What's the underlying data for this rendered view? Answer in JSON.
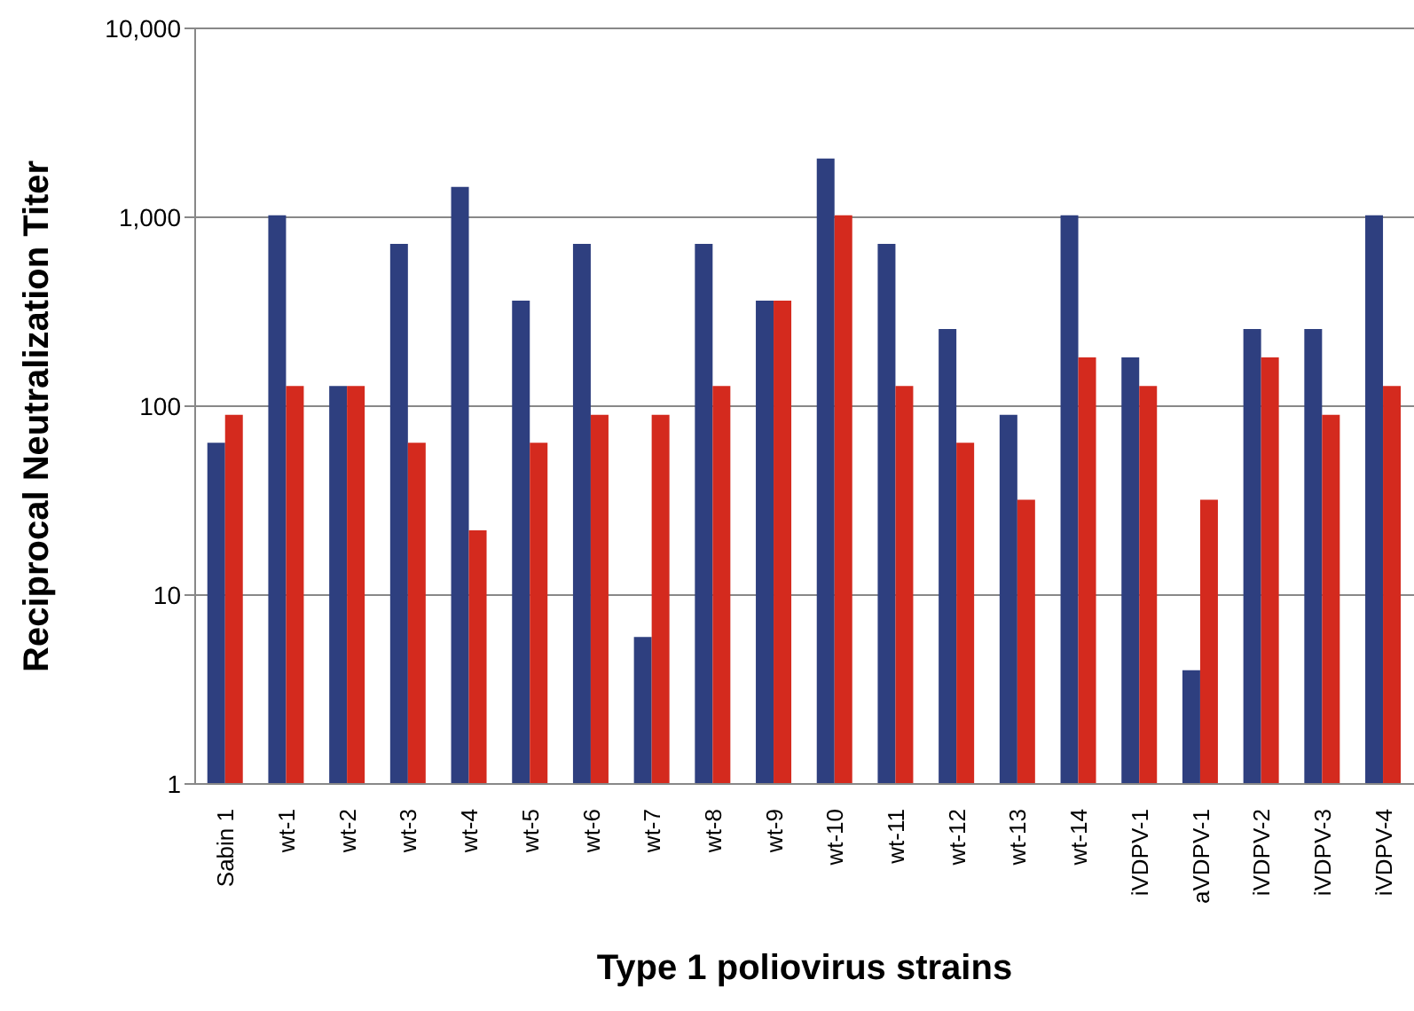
{
  "chart_data": {
    "type": "bar",
    "xlabel": "Type 1 poliovirus strains",
    "ylabel": "Reciprocal Neutralization Titer",
    "categories": [
      "Sabin 1",
      "wt-1",
      "wt-2",
      "wt-3",
      "wt-4",
      "wt-5",
      "wt-6",
      "wt-7",
      "wt-8",
      "wt-9",
      "wt-10",
      "wt-11",
      "wt-12",
      "wt-13",
      "wt-14",
      "iVDPV-1",
      "aVDPV-1",
      "iVDPV-2",
      "iVDPV-3",
      "iVDPV-4"
    ],
    "series": [
      {
        "color": "#2e3f7f",
        "values": [
          64,
          1024,
          128,
          724,
          1448,
          362,
          724,
          6,
          724,
          362,
          2048,
          724,
          256,
          90,
          1024,
          181,
          4,
          256,
          256,
          1024
        ]
      },
      {
        "color": "#d42a1e",
        "values": [
          90,
          128,
          128,
          64,
          22,
          64,
          90,
          90,
          128,
          362,
          1024,
          128,
          64,
          32,
          181,
          128,
          32,
          181,
          90,
          128
        ]
      }
    ],
    "log": "y",
    "ylim": [
      1,
      10000
    ],
    "yticks": [
      1,
      10,
      100,
      {
        "value": 1000,
        "label": "1,000"
      },
      {
        "value": 10000,
        "label": "10,000"
      }
    ],
    "grid": "y"
  }
}
